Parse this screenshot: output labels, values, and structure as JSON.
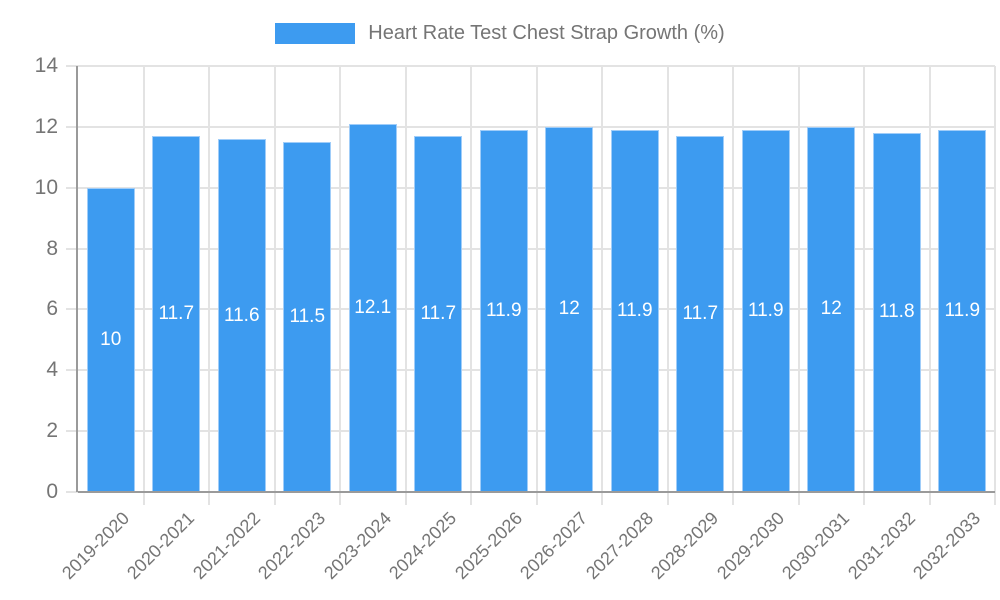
{
  "legend": {
    "label": "Heart Rate Test Chest Strap Growth (%)"
  },
  "chart_data": {
    "type": "bar",
    "title": "Heart Rate Test Chest Strap Growth (%)",
    "categories": [
      "2019-2020",
      "2020-2021",
      "2021-2022",
      "2022-2023",
      "2023-2024",
      "2024-2025",
      "2025-2026",
      "2026-2027",
      "2027-2028",
      "2028-2029",
      "2029-2030",
      "2030-2031",
      "2031-2032",
      "2032-2033"
    ],
    "values": [
      10,
      11.7,
      11.6,
      11.5,
      12.1,
      11.7,
      11.9,
      12,
      11.9,
      11.7,
      11.9,
      12,
      11.8,
      11.9
    ],
    "value_labels": [
      "10",
      "11.7",
      "11.6",
      "11.5",
      "12.1",
      "11.7",
      "11.9",
      "12",
      "11.9",
      "11.7",
      "11.9",
      "12",
      "11.8",
      "11.9"
    ],
    "xlabel": "",
    "ylabel": "",
    "ylim": [
      0,
      14
    ],
    "ytick_step": 2,
    "ytick_labels": [
      "0",
      "2",
      "4",
      "6",
      "8",
      "10",
      "12",
      "14"
    ],
    "grid": true,
    "legend_position": "top-center",
    "colors": {
      "bar": "#3d9bf0",
      "value_label": "#ffffff",
      "grid_line": "#e3e3e3",
      "axis_line": "#9a9a9a",
      "tick_label": "#757575",
      "legend_text": "#757575",
      "background": "#ffffff"
    }
  }
}
